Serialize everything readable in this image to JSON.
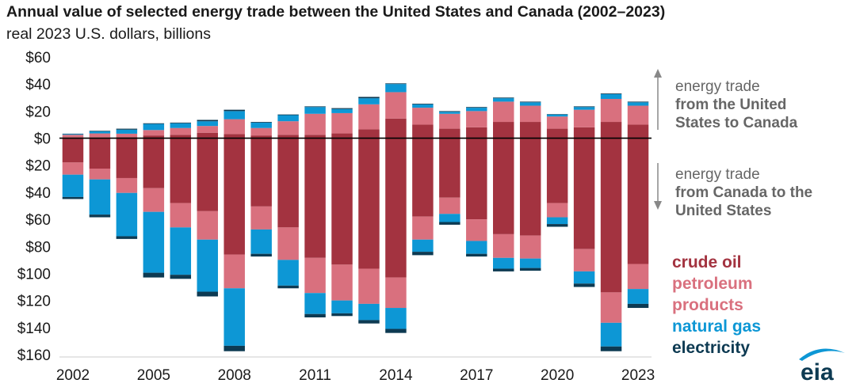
{
  "chart_data": {
    "type": "bar",
    "title": "Annual value of selected energy trade between the United States and Canada (2002–2023)",
    "subtitle": "real 2023 U.S. dollars, billions",
    "categories": [
      "2002",
      "2003",
      "2004",
      "2005",
      "2006",
      "2007",
      "2008",
      "2009",
      "2010",
      "2011",
      "2012",
      "2013",
      "2014",
      "2015",
      "2016",
      "2017",
      "2018",
      "2019",
      "2020",
      "2021",
      "2022",
      "2023"
    ],
    "x_tick_labels": [
      "2002",
      "2005",
      "2008",
      "2011",
      "2014",
      "2017",
      "2020",
      "2023"
    ],
    "y_tick_labels": [
      "$60",
      "$40",
      "$20",
      "$0",
      "$20",
      "$40",
      "$60",
      "$80",
      "$100",
      "$120",
      "$140",
      "$160"
    ],
    "y_tick_values": [
      60,
      40,
      20,
      0,
      -20,
      -40,
      -60,
      -80,
      -100,
      -120,
      -140,
      -160
    ],
    "ylim": [
      -160,
      60
    ],
    "stacked": true,
    "series": [
      {
        "name": "crude oil",
        "color": "#a33340",
        "exports": [
          0.5,
          0.5,
          0.8,
          2,
          2.5,
          4,
          3,
          2,
          2.5,
          2.5,
          3.5,
          6.5,
          14.5,
          10,
          7,
          8,
          12,
          12,
          7,
          8,
          12,
          10
        ],
        "imports": [
          -18,
          -22.5,
          -29.5,
          -37,
          -48,
          -54,
          -86,
          -50.5,
          -66,
          -88.5,
          -93.5,
          -96.5,
          -103,
          -58,
          -44,
          -60,
          -71,
          -72,
          -48,
          -82,
          -114,
          -93
        ]
      },
      {
        "name": "petroleum products",
        "color": "#d9707e",
        "exports": [
          2,
          3,
          2.5,
          4,
          5,
          5,
          11,
          5.5,
          10,
          15.5,
          15,
          18.5,
          19.5,
          12.5,
          11,
          12,
          15,
          12,
          9,
          13,
          17,
          14
        ],
        "imports": [
          -9,
          -8,
          -11,
          -17.5,
          -18,
          -21,
          -25,
          -17,
          -24,
          -26,
          -26.5,
          -26,
          -22.5,
          -17,
          -12,
          -16,
          -17.5,
          -17,
          -10.5,
          -16.5,
          -22.5,
          -18.5
        ]
      },
      {
        "name": "natural gas",
        "color": "#0d97d5",
        "exports": [
          0.5,
          1.5,
          3,
          4.5,
          3.5,
          3.5,
          6,
          4,
          4.5,
          5,
          3,
          4.5,
          6,
          2.5,
          1.5,
          2.5,
          2.5,
          2.5,
          1.5,
          2,
          3.5,
          2.5
        ],
        "imports": [
          -16.5,
          -26,
          -32,
          -45,
          -35,
          -38.5,
          -42.5,
          -18,
          -19,
          -15.5,
          -9.5,
          -12,
          -15.5,
          -9,
          -6,
          -9.5,
          -8,
          -7,
          -5,
          -9,
          -17.5,
          -11
        ]
      },
      {
        "name": "electricity",
        "color": "#0d3a52",
        "exports": [
          0.3,
          0.4,
          0.7,
          0.5,
          0.5,
          1,
          1,
          0.5,
          0.5,
          0.5,
          0.7,
          1,
          0.5,
          0.5,
          0.5,
          0.5,
          0.5,
          0.5,
          0.3,
          0.5,
          0.5,
          0.5
        ],
        "imports": [
          -1.5,
          -2,
          -2,
          -3.5,
          -3,
          -3.5,
          -4,
          -2,
          -2,
          -2.5,
          -2,
          -2.5,
          -3,
          -2.5,
          -2,
          -2,
          -2,
          -2,
          -2,
          -2.5,
          -3.5,
          -3
        ]
      }
    ]
  },
  "notes": {
    "exports": {
      "line1": "energy trade",
      "line2": "from the United",
      "line3": "States to Canada"
    },
    "imports": {
      "line1": "energy trade",
      "line2": "from Canada to the",
      "line3": "United States"
    }
  },
  "legend": [
    {
      "label": "crude oil",
      "color": "#a33340"
    },
    {
      "label": "petroleum",
      "color": "#d9707e"
    },
    {
      "label": "products",
      "color": "#d9707e"
    },
    {
      "label": "natural gas",
      "color": "#0d97d5"
    },
    {
      "label": "electricity",
      "color": "#0d3a52"
    }
  ],
  "logo": {
    "text": "eia",
    "color": "#0d3a52",
    "accent": "#0d97d5"
  },
  "colors": {
    "zero_line": "#000000",
    "grid": "#cccccc",
    "arrow": "#888888",
    "text": "#1a1a1a"
  }
}
